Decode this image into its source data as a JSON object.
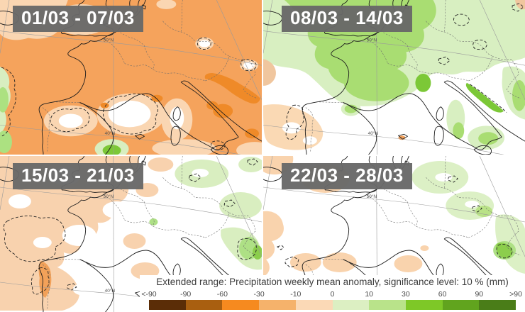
{
  "panels": [
    {
      "label": "01/03 - 07/03"
    },
    {
      "label": "08/03 - 14/03"
    },
    {
      "label": "15/03 - 21/03"
    },
    {
      "label": "22/03 - 28/03"
    }
  ],
  "map": {
    "lat_top": "50°N",
    "lat_bottom": "40°N"
  },
  "legend": {
    "title": "Extended range: Precipitation weekly mean anomaly, significance level: 10 % (mm)",
    "ticks": [
      "<-90",
      "-90",
      "-60",
      "-30",
      "-10",
      "0",
      "10",
      "30",
      "60",
      "90",
      ">90"
    ],
    "colors": [
      "#5B2D07",
      "#A95F10",
      "#F68A1F",
      "#F5B26B",
      "#FBD9B6",
      "#DCEFC2",
      "#B9E38A",
      "#7EC827",
      "#61A41E",
      "#4A7D18"
    ],
    "anomaly_color_positive": "#7EC827",
    "anomaly_color_negative": "#F68A1F"
  }
}
